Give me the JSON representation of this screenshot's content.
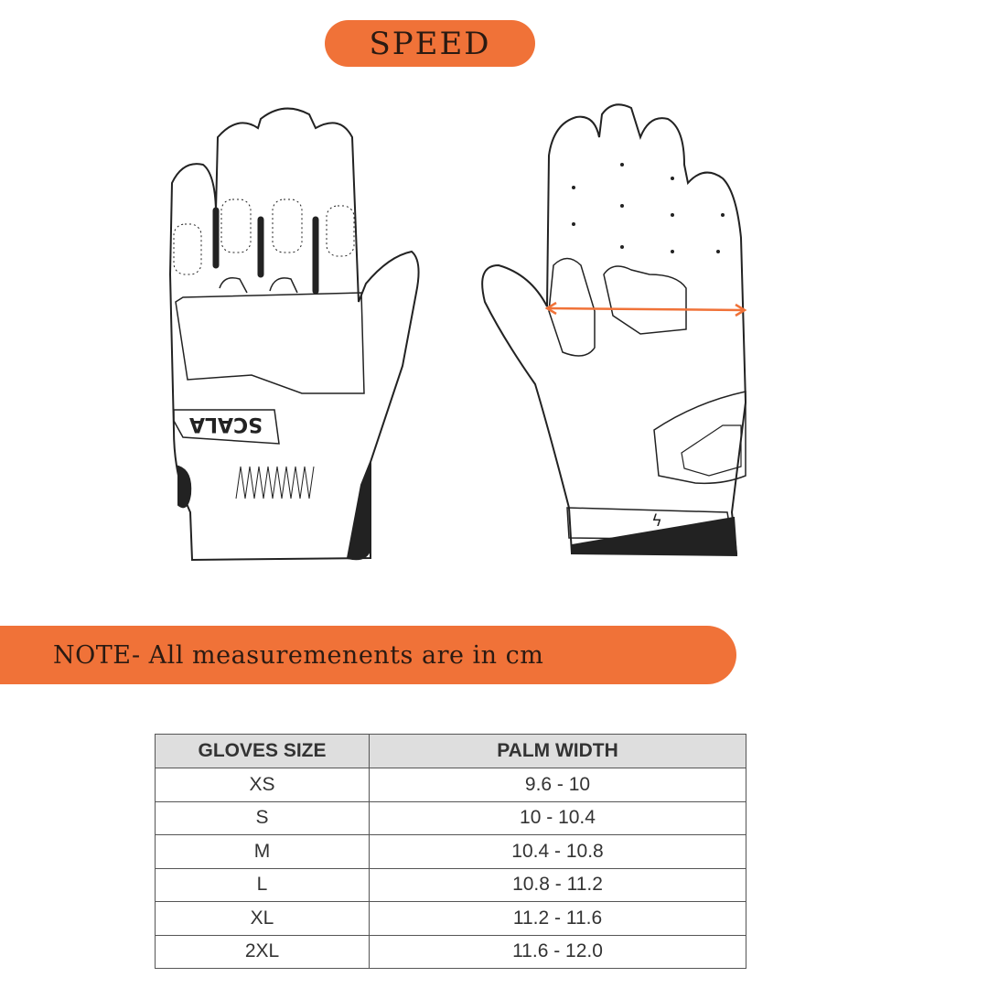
{
  "header": {
    "title": "SPEED"
  },
  "illustration": {
    "logo_text": "SCALA",
    "accent_color": "#F07238"
  },
  "note": {
    "text": "NOTE-  All measuremenents are in cm"
  },
  "size_table": {
    "columns": [
      "GLOVES SIZE",
      "PALM WIDTH"
    ],
    "rows": [
      [
        "XS",
        "9.6 - 10"
      ],
      [
        "S",
        "10 - 10.4"
      ],
      [
        "M",
        "10.4 - 10.8"
      ],
      [
        "L",
        "10.8 - 11.2"
      ],
      [
        "XL",
        "11.2 - 11.6"
      ],
      [
        "2XL",
        "11.6 - 12.0"
      ]
    ]
  }
}
